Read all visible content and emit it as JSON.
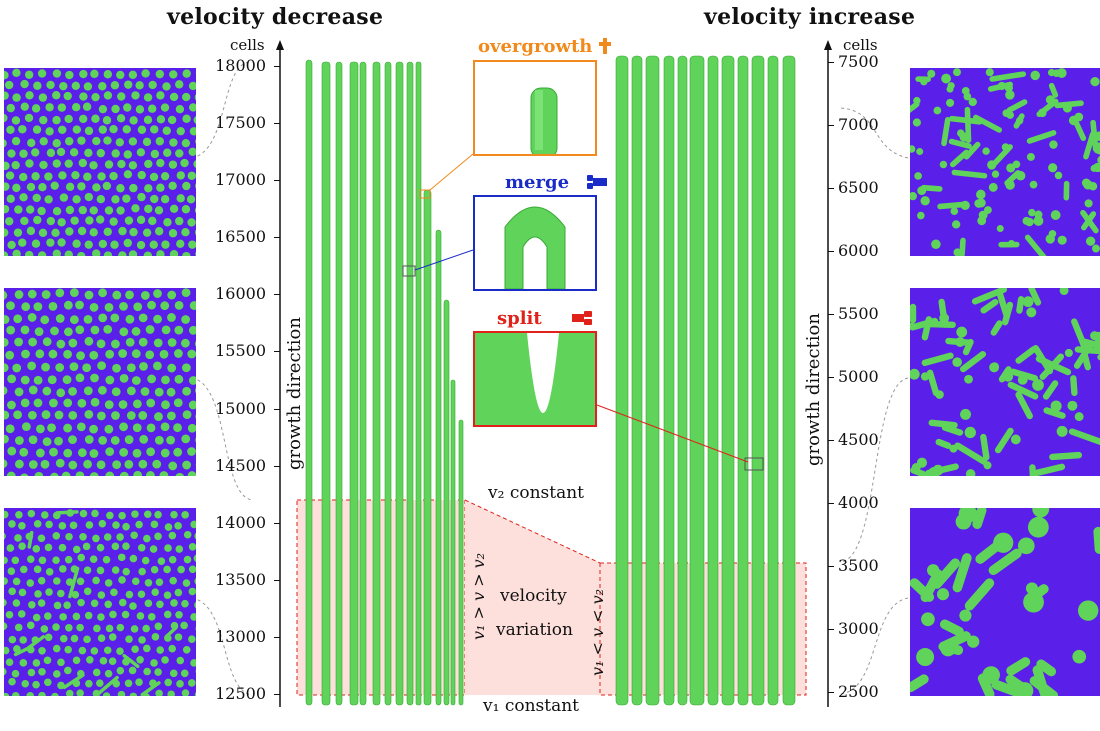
{
  "titles": {
    "left": "velocity decrease",
    "right": "velocity increase"
  },
  "axis_left": {
    "unit": "cells",
    "ticks": [
      "18000",
      "17500",
      "17000",
      "16500",
      "16000",
      "15500",
      "15000",
      "14500",
      "14000",
      "13500",
      "13000",
      "12500"
    ],
    "label": "growth direction"
  },
  "axis_right": {
    "unit": "cells",
    "ticks": [
      "7500",
      "7000",
      "6500",
      "6000",
      "5500",
      "5000",
      "4500",
      "4000",
      "3500",
      "3000",
      "2500"
    ],
    "label": "growth direction"
  },
  "events": {
    "overgrowth": {
      "label": "overgrowth",
      "color": "#f08a1c",
      "icon": "cross-icon"
    },
    "merge": {
      "label": "merge",
      "color": "#1a2cc8",
      "icon": "merge-icon"
    },
    "split": {
      "label": "split",
      "color": "#e0221b",
      "icon": "split-icon"
    }
  },
  "annotations": {
    "v2_constant": "v₂ constant",
    "v1_constant": "v₁ constant",
    "velocity_variation_line1": "velocity",
    "velocity_variation_line2": "variation",
    "left_condition": "v₁ > v > v₂",
    "right_condition": "v₁ < v < v₂"
  },
  "colors": {
    "fiber_green": "#5fd35a",
    "matrix_purple": "#5a1fe8",
    "variation_fill": "#fde0dc",
    "variation_border": "#e0221b"
  }
}
